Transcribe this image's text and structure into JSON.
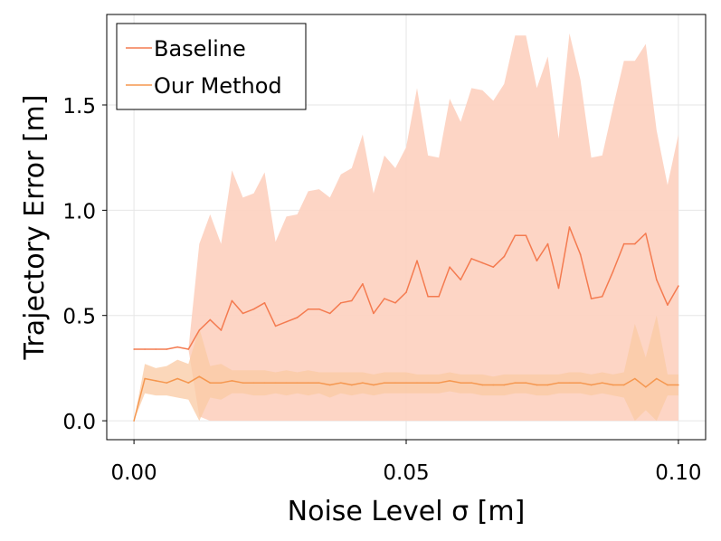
{
  "chart_data": {
    "type": "line",
    "xlabel": "Noise Level σ [m]",
    "ylabel": "Trajectory Error [m]",
    "xlim": [
      -0.005,
      0.105
    ],
    "ylim": [
      -0.09,
      1.93
    ],
    "xticks": [
      0.0,
      0.05,
      0.1
    ],
    "xtick_labels": [
      "0.00",
      "0.05",
      "0.10"
    ],
    "yticks": [
      0.0,
      0.5,
      1.0,
      1.5
    ],
    "ytick_labels": [
      "0.0",
      "0.5",
      "1.0",
      "1.5"
    ],
    "grid": true,
    "legend_position": "top-left",
    "x": [
      0.0,
      0.002,
      0.004,
      0.006,
      0.008,
      0.01,
      0.012,
      0.014,
      0.016,
      0.018,
      0.02,
      0.022,
      0.024,
      0.026,
      0.028,
      0.03,
      0.032,
      0.034,
      0.036,
      0.038,
      0.04,
      0.042,
      0.044,
      0.046,
      0.048,
      0.05,
      0.052,
      0.054,
      0.056,
      0.058,
      0.06,
      0.062,
      0.064,
      0.066,
      0.068,
      0.07,
      0.072,
      0.074,
      0.076,
      0.078,
      0.08,
      0.082,
      0.084,
      0.086,
      0.088,
      0.09,
      0.092,
      0.094,
      0.096,
      0.098,
      0.1
    ],
    "series": [
      {
        "name": "Baseline",
        "color": "#f47b50",
        "band_color": "#fdd3c2",
        "values": [
          0.34,
          0.34,
          0.34,
          0.34,
          0.35,
          0.34,
          0.43,
          0.48,
          0.43,
          0.57,
          0.51,
          0.53,
          0.56,
          0.45,
          0.47,
          0.49,
          0.53,
          0.53,
          0.51,
          0.56,
          0.57,
          0.65,
          0.51,
          0.58,
          0.56,
          0.61,
          0.76,
          0.59,
          0.59,
          0.73,
          0.67,
          0.77,
          0.75,
          0.73,
          0.78,
          0.88,
          0.88,
          0.76,
          0.84,
          0.63,
          0.92,
          0.79,
          0.58,
          0.59,
          0.71,
          0.84,
          0.84,
          0.89,
          0.67,
          0.55,
          0.64
        ],
        "upper": [
          0.34,
          0.34,
          0.34,
          0.34,
          0.35,
          0.34,
          0.84,
          0.98,
          0.84,
          1.19,
          1.06,
          1.08,
          1.18,
          0.85,
          0.97,
          0.98,
          1.09,
          1.1,
          1.06,
          1.17,
          1.2,
          1.36,
          1.08,
          1.26,
          1.2,
          1.3,
          1.58,
          1.26,
          1.25,
          1.53,
          1.42,
          1.58,
          1.57,
          1.52,
          1.6,
          1.83,
          1.83,
          1.58,
          1.73,
          1.34,
          1.84,
          1.62,
          1.25,
          1.26,
          1.49,
          1.71,
          1.71,
          1.79,
          1.38,
          1.12,
          1.36
        ],
        "lower": [
          0.34,
          0.34,
          0.34,
          0.34,
          0.35,
          0.34,
          0.02,
          0.0,
          0.0,
          0.0,
          0.0,
          0.0,
          0.0,
          0.0,
          0.0,
          0.0,
          0.0,
          0.0,
          0.0,
          0.0,
          0.0,
          0.0,
          0.0,
          0.0,
          0.0,
          0.0,
          0.0,
          0.0,
          0.0,
          0.0,
          0.0,
          0.0,
          0.0,
          0.0,
          0.0,
          0.0,
          0.0,
          0.0,
          0.0,
          0.0,
          0.0,
          0.0,
          0.0,
          0.0,
          0.0,
          0.0,
          0.0,
          0.0,
          0.0,
          0.0,
          0.0
        ]
      },
      {
        "name": "Our Method",
        "color": "#f5974f",
        "band_color": "#f9c9a3",
        "values": [
          0.0,
          0.2,
          0.19,
          0.18,
          0.2,
          0.18,
          0.21,
          0.18,
          0.18,
          0.19,
          0.18,
          0.18,
          0.18,
          0.18,
          0.18,
          0.18,
          0.18,
          0.18,
          0.17,
          0.18,
          0.17,
          0.18,
          0.17,
          0.18,
          0.18,
          0.18,
          0.18,
          0.18,
          0.18,
          0.19,
          0.18,
          0.18,
          0.17,
          0.17,
          0.17,
          0.18,
          0.18,
          0.17,
          0.17,
          0.18,
          0.18,
          0.18,
          0.17,
          0.18,
          0.17,
          0.17,
          0.2,
          0.16,
          0.2,
          0.17,
          0.17
        ],
        "upper": [
          0.0,
          0.27,
          0.25,
          0.26,
          0.29,
          0.27,
          0.44,
          0.26,
          0.27,
          0.24,
          0.24,
          0.24,
          0.24,
          0.23,
          0.24,
          0.23,
          0.24,
          0.23,
          0.23,
          0.23,
          0.23,
          0.23,
          0.22,
          0.23,
          0.23,
          0.23,
          0.22,
          0.22,
          0.22,
          0.23,
          0.22,
          0.22,
          0.22,
          0.21,
          0.22,
          0.22,
          0.22,
          0.22,
          0.22,
          0.22,
          0.23,
          0.23,
          0.22,
          0.23,
          0.22,
          0.23,
          0.46,
          0.3,
          0.5,
          0.22,
          0.22
        ],
        "lower": [
          0.0,
          0.13,
          0.12,
          0.12,
          0.11,
          0.1,
          0.0,
          0.11,
          0.1,
          0.13,
          0.13,
          0.12,
          0.12,
          0.13,
          0.12,
          0.13,
          0.12,
          0.13,
          0.11,
          0.13,
          0.12,
          0.13,
          0.12,
          0.13,
          0.13,
          0.13,
          0.13,
          0.13,
          0.13,
          0.14,
          0.13,
          0.13,
          0.12,
          0.12,
          0.12,
          0.13,
          0.13,
          0.12,
          0.12,
          0.13,
          0.13,
          0.13,
          0.12,
          0.13,
          0.12,
          0.11,
          0.0,
          0.05,
          0.0,
          0.12,
          0.12
        ]
      }
    ]
  }
}
